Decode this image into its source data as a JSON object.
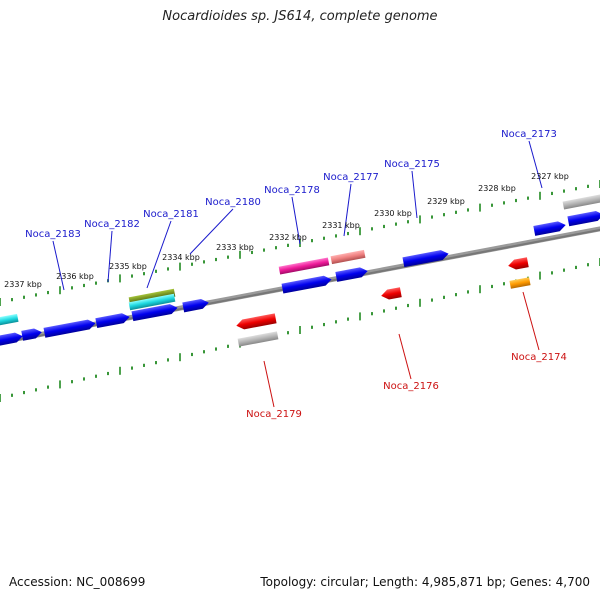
{
  "title": "Nocardioides sp. JS614, complete genome",
  "footer": {
    "accession": "Accession: NC_008699",
    "topology": "Topology: circular; Length: 4,985,871 bp; Genes: 4,700"
  },
  "ruler_ticks": [
    "2327 kbp",
    "2328 kbp",
    "2329 kbp",
    "2330 kbp",
    "2331 kbp",
    "2332 kbp",
    "2333 kbp",
    "2334 kbp",
    "2335 kbp",
    "2336 kbp",
    "2337 kbp"
  ],
  "colors": {
    "forward_label": "#1a1acc",
    "reverse_label": "#cc1111",
    "backbone": "#777777",
    "ticks": "#228b22"
  },
  "gene_labels": {
    "forward": [
      "Noca_2173",
      "Noca_2175",
      "Noca_2177",
      "Noca_2178",
      "Noca_2180",
      "Noca_2181",
      "Noca_2182",
      "Noca_2183"
    ],
    "reverse": [
      "Noca_2174",
      "Noca_2176",
      "Noca_2179"
    ]
  }
}
